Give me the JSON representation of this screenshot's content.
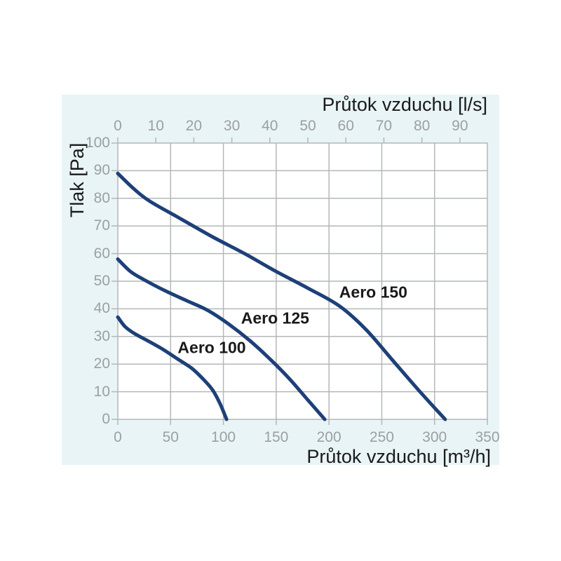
{
  "page": {
    "background_color": "#ffffff",
    "panel_color": "#e9f4f7"
  },
  "chart_data": {
    "type": "line",
    "title": "",
    "grid": true,
    "legend_position": "inline-labels",
    "x_axis_bottom": {
      "label": "Průtok vzduchu [m³/h]",
      "unit": "m³/h",
      "min": 0,
      "max": 350,
      "ticks": [
        0,
        50,
        100,
        150,
        200,
        250,
        300,
        350
      ]
    },
    "x_axis_top": {
      "label": "Průtok vzduchu [l/s]",
      "unit": "l/s",
      "ticks": [
        0,
        10,
        20,
        30,
        40,
        50,
        60,
        70,
        80,
        90
      ],
      "to_bottom_unit_factor": 3.6
    },
    "y_axis": {
      "label": "Tlak [Pa]",
      "unit": "Pa",
      "min": 0,
      "max": 100,
      "ticks": [
        0,
        10,
        20,
        30,
        40,
        50,
        60,
        70,
        80,
        90,
        100
      ]
    },
    "colors": {
      "curve": "#1e4078",
      "grid": "#b4b7b8",
      "tick_text": "#9aa0a4",
      "axis_text": "#1a1a1a",
      "plot_background": "#ffffff"
    },
    "series": [
      {
        "name": "Aero 100",
        "points": [
          [
            0,
            37
          ],
          [
            7,
            33.5
          ],
          [
            16,
            31
          ],
          [
            28,
            28.5
          ],
          [
            42,
            25.5
          ],
          [
            56,
            22
          ],
          [
            70,
            18.5
          ],
          [
            81,
            14.5
          ],
          [
            90,
            10.5
          ],
          [
            97,
            5.5
          ],
          [
            103,
            0
          ]
        ],
        "label_at": [
          89,
          26
        ]
      },
      {
        "name": "Aero 125",
        "points": [
          [
            0,
            58
          ],
          [
            12,
            53.5
          ],
          [
            25,
            50.5
          ],
          [
            45,
            46.5
          ],
          [
            65,
            43
          ],
          [
            85,
            39.5
          ],
          [
            105,
            34.5
          ],
          [
            125,
            28.5
          ],
          [
            145,
            21.5
          ],
          [
            163,
            14.5
          ],
          [
            180,
            7
          ],
          [
            196,
            0
          ]
        ],
        "label_at": [
          149,
          36.5
        ]
      },
      {
        "name": "Aero 150",
        "points": [
          [
            0,
            89
          ],
          [
            15,
            83.5
          ],
          [
            30,
            79
          ],
          [
            60,
            72.5
          ],
          [
            90,
            66
          ],
          [
            120,
            60
          ],
          [
            150,
            53.5
          ],
          [
            180,
            47.5
          ],
          [
            210,
            41
          ],
          [
            235,
            32.5
          ],
          [
            260,
            21.5
          ],
          [
            285,
            10.5
          ],
          [
            310,
            0
          ]
        ],
        "label_at": [
          242,
          46
        ]
      }
    ]
  }
}
